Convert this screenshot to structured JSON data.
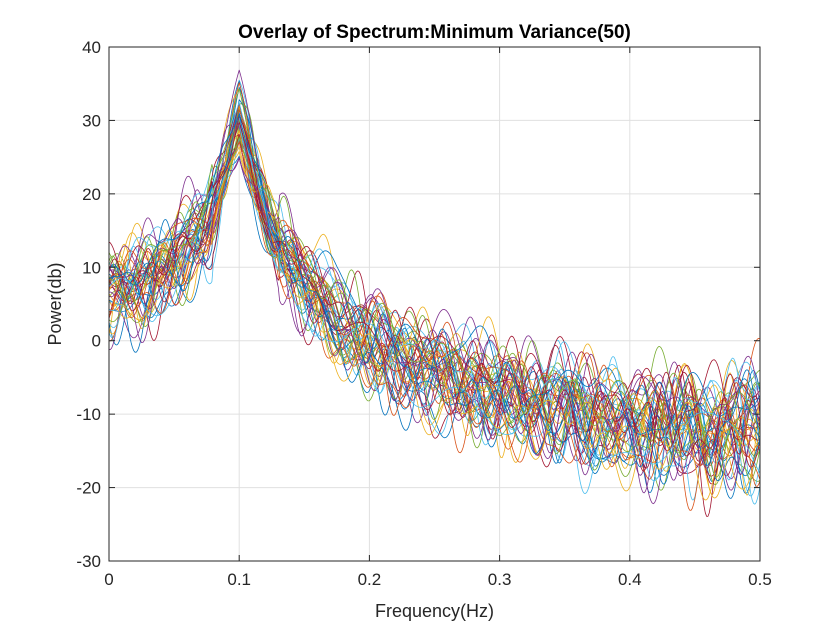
{
  "chart_data": {
    "type": "line",
    "title": "Overlay of Spectrum:Minimum Variance(50)",
    "xlabel": "Frequency(Hz)",
    "ylabel": "Power(db)",
    "xlim": [
      0,
      0.5
    ],
    "ylim": [
      -30,
      40
    ],
    "xticks": [
      0,
      0.1,
      0.2,
      0.3,
      0.4,
      0.5
    ],
    "xtick_labels": [
      "0",
      "0.1",
      "0.2",
      "0.3",
      "0.4",
      "0.5"
    ],
    "yticks": [
      -30,
      -20,
      -10,
      0,
      10,
      20,
      30,
      40
    ],
    "ytick_labels": [
      "-30",
      "-20",
      "-10",
      "0",
      "10",
      "20",
      "30",
      "40"
    ],
    "grid": true,
    "legend": "none",
    "series_colors": [
      "#0072bd",
      "#d95319",
      "#edb120",
      "#7e2f8e",
      "#77ac30",
      "#4dbeee",
      "#a2142f"
    ],
    "envelope": {
      "x": [
        0,
        0.025,
        0.05,
        0.075,
        0.09,
        0.1,
        0.11,
        0.125,
        0.15,
        0.175,
        0.2,
        0.25,
        0.3,
        0.35,
        0.4,
        0.45,
        0.5
      ],
      "mean": [
        7,
        8,
        11,
        16,
        23,
        29,
        23,
        15,
        8,
        3,
        0,
        -4,
        -7,
        -9,
        -11,
        -12,
        -11
      ],
      "spread": [
        4,
        4,
        4,
        4,
        4,
        4,
        4,
        4,
        4,
        4,
        4.5,
        4.5,
        5,
        5,
        5,
        5.5,
        5.5
      ]
    },
    "series_count": 50,
    "points_per_series": 501
  }
}
